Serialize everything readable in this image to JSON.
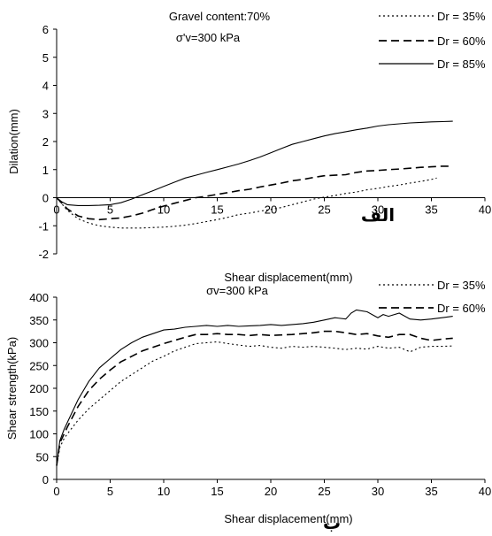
{
  "chart_data": [
    {
      "type": "line",
      "panel_mark": "الف",
      "annotations": [
        "Gravel content:70%",
        "σ'v=300 kPa"
      ],
      "xlabel": "Shear displacement(mm)",
      "ylabel": "Dilation(mm)",
      "xlim": [
        0,
        40
      ],
      "ylim": [
        -2,
        6
      ],
      "xticks": [
        "0",
        "5",
        "10",
        "15",
        "20",
        "25",
        "30",
        "35",
        "40"
      ],
      "yticks": [
        "-2",
        "-1",
        "0",
        "1",
        "2",
        "3",
        "4",
        "5",
        "6"
      ],
      "grid": false,
      "legend_position": "top-right",
      "series": [
        {
          "name": "Dr = 35%",
          "style": "dotted",
          "x": [
            0,
            1,
            2,
            3,
            4,
            5,
            6,
            7,
            8,
            9,
            10,
            11,
            12,
            13,
            14,
            15,
            16,
            17,
            18,
            19,
            20,
            21,
            22,
            23,
            24,
            25,
            26,
            27,
            28,
            29,
            30,
            31,
            32,
            33,
            34,
            35,
            35.5
          ],
          "values": [
            0,
            -0.45,
            -0.75,
            -0.9,
            -1.0,
            -1.05,
            -1.08,
            -1.08,
            -1.08,
            -1.06,
            -1.05,
            -1.02,
            -0.98,
            -0.92,
            -0.85,
            -0.78,
            -0.7,
            -0.6,
            -0.55,
            -0.48,
            -0.42,
            -0.35,
            -0.25,
            -0.15,
            -0.05,
            0.02,
            0.08,
            0.15,
            0.2,
            0.28,
            0.33,
            0.4,
            0.45,
            0.52,
            0.58,
            0.65,
            0.7
          ]
        },
        {
          "name": "Dr = 60%",
          "style": "dashed",
          "x": [
            0,
            1,
            2,
            3,
            4,
            5,
            6,
            7,
            8,
            9,
            10,
            11,
            12,
            13,
            14,
            15,
            16,
            17,
            18,
            19,
            20,
            21,
            22,
            23,
            24,
            25,
            26,
            27,
            28,
            29,
            30,
            31,
            32,
            33,
            34,
            35,
            36,
            37
          ],
          "values": [
            0,
            -0.4,
            -0.65,
            -0.75,
            -0.78,
            -0.75,
            -0.72,
            -0.65,
            -0.55,
            -0.42,
            -0.3,
            -0.2,
            -0.1,
            0.0,
            0.05,
            0.12,
            0.18,
            0.25,
            0.3,
            0.38,
            0.45,
            0.52,
            0.6,
            0.65,
            0.72,
            0.78,
            0.8,
            0.82,
            0.9,
            0.95,
            0.97,
            1.0,
            1.02,
            1.05,
            1.08,
            1.1,
            1.12,
            1.12
          ]
        },
        {
          "name": "Dr = 85%",
          "style": "solid",
          "x": [
            0,
            0.5,
            1,
            2,
            3,
            4,
            5,
            6,
            7,
            8,
            9,
            10,
            11,
            12,
            13,
            14,
            15,
            16,
            17,
            18,
            19,
            20,
            21,
            22,
            23,
            24,
            25,
            26,
            27,
            28,
            29,
            30,
            31,
            32,
            33,
            34,
            35,
            36,
            37
          ],
          "values": [
            0,
            -0.15,
            -0.25,
            -0.28,
            -0.28,
            -0.27,
            -0.25,
            -0.18,
            -0.05,
            0.1,
            0.25,
            0.4,
            0.55,
            0.7,
            0.8,
            0.9,
            1.0,
            1.1,
            1.2,
            1.32,
            1.45,
            1.6,
            1.75,
            1.9,
            2.0,
            2.1,
            2.2,
            2.28,
            2.35,
            2.42,
            2.48,
            2.55,
            2.6,
            2.63,
            2.66,
            2.68,
            2.7,
            2.71,
            2.72
          ]
        }
      ]
    },
    {
      "type": "line",
      "panel_mark": "ب",
      "annotations": [
        "σv=300 kPa"
      ],
      "xlabel": "Shear displacement(mm)",
      "ylabel": "Shear strength(kPa)",
      "xlim": [
        0,
        40
      ],
      "ylim": [
        0,
        400
      ],
      "xticks": [
        "0",
        "5",
        "10",
        "15",
        "20",
        "25",
        "30",
        "35",
        "40"
      ],
      "yticks": [
        "0",
        "50",
        "100",
        "150",
        "200",
        "250",
        "300",
        "350",
        "400"
      ],
      "grid": false,
      "legend_position": "top-right",
      "series": [
        {
          "name": "Dr = 35%",
          "style": "dotted",
          "x": [
            0,
            0.3,
            0.7,
            1,
            2,
            3,
            4,
            5,
            6,
            7,
            8,
            9,
            10,
            11,
            12,
            13,
            14,
            15,
            16,
            17,
            18,
            19,
            20,
            21,
            22,
            23,
            24,
            25,
            26,
            27,
            28,
            29,
            30,
            31,
            32,
            33,
            34,
            35,
            36,
            37
          ],
          "values": [
            30,
            70,
            90,
            100,
            130,
            155,
            175,
            195,
            215,
            230,
            245,
            260,
            270,
            282,
            290,
            298,
            300,
            302,
            298,
            295,
            292,
            294,
            290,
            288,
            292,
            290,
            292,
            290,
            288,
            285,
            288,
            286,
            292,
            288,
            290,
            280,
            290,
            292,
            292,
            293
          ]
        },
        {
          "name": "Dr = 60%",
          "style": "dashed",
          "x": [
            0,
            0.3,
            0.7,
            1,
            2,
            3,
            4,
            5,
            6,
            7,
            8,
            9,
            10,
            11,
            12,
            13,
            14,
            15,
            16,
            17,
            18,
            19,
            20,
            21,
            22,
            23,
            24,
            25,
            26,
            27,
            28,
            29,
            30,
            31,
            32,
            33,
            34,
            35,
            36,
            37
          ],
          "values": [
            30,
            80,
            100,
            115,
            160,
            195,
            220,
            240,
            258,
            270,
            282,
            290,
            298,
            305,
            312,
            318,
            318,
            320,
            318,
            318,
            316,
            318,
            316,
            317,
            318,
            320,
            322,
            325,
            325,
            322,
            318,
            320,
            315,
            312,
            318,
            318,
            310,
            305,
            308,
            310
          ]
        },
        {
          "name": "Dr = 85%",
          "style": "solid",
          "x": [
            0,
            0.3,
            0.7,
            1,
            2,
            3,
            4,
            5,
            6,
            7,
            8,
            9,
            10,
            11,
            12,
            13,
            14,
            15,
            16,
            17,
            18,
            19,
            20,
            21,
            22,
            23,
            24,
            25,
            26,
            27,
            27.5,
            28,
            29,
            30,
            30.5,
            31,
            32,
            33,
            34,
            35,
            36,
            37
          ],
          "values": [
            30,
            85,
            110,
            125,
            175,
            215,
            245,
            265,
            285,
            300,
            312,
            320,
            328,
            330,
            334,
            336,
            338,
            336,
            338,
            336,
            337,
            338,
            340,
            338,
            340,
            342,
            345,
            350,
            355,
            352,
            365,
            372,
            368,
            355,
            362,
            358,
            365,
            352,
            350,
            352,
            355,
            358
          ]
        }
      ]
    }
  ]
}
